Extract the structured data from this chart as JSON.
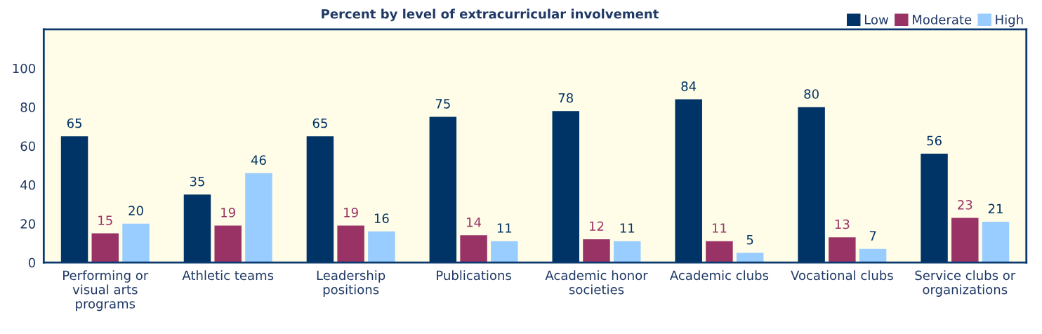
{
  "chart_data": {
    "type": "bar",
    "title": "Percent by level of extracurricular involvement",
    "categories": [
      "Performing or\nvisual arts\nprograms",
      "Athletic teams",
      "Leadership\npositions",
      "Publications",
      "Academic honor\nsocieties",
      "Academic clubs",
      "Vocational clubs",
      "Service clubs or\norganizations"
    ],
    "series": [
      {
        "name": "Low",
        "color": "#003366",
        "values": [
          65,
          35,
          65,
          75,
          78,
          84,
          80,
          56
        ]
      },
      {
        "name": "Moderate",
        "color": "#993366",
        "values": [
          15,
          19,
          19,
          14,
          12,
          11,
          13,
          23
        ]
      },
      {
        "name": "High",
        "color": "#99ccff",
        "values": [
          20,
          46,
          16,
          11,
          11,
          5,
          7,
          21
        ]
      }
    ],
    "ylim": [
      0,
      120
    ],
    "yticks": [
      0,
      20,
      40,
      60,
      80,
      100
    ],
    "grid": false,
    "legend": "top right",
    "data_labels": true
  }
}
